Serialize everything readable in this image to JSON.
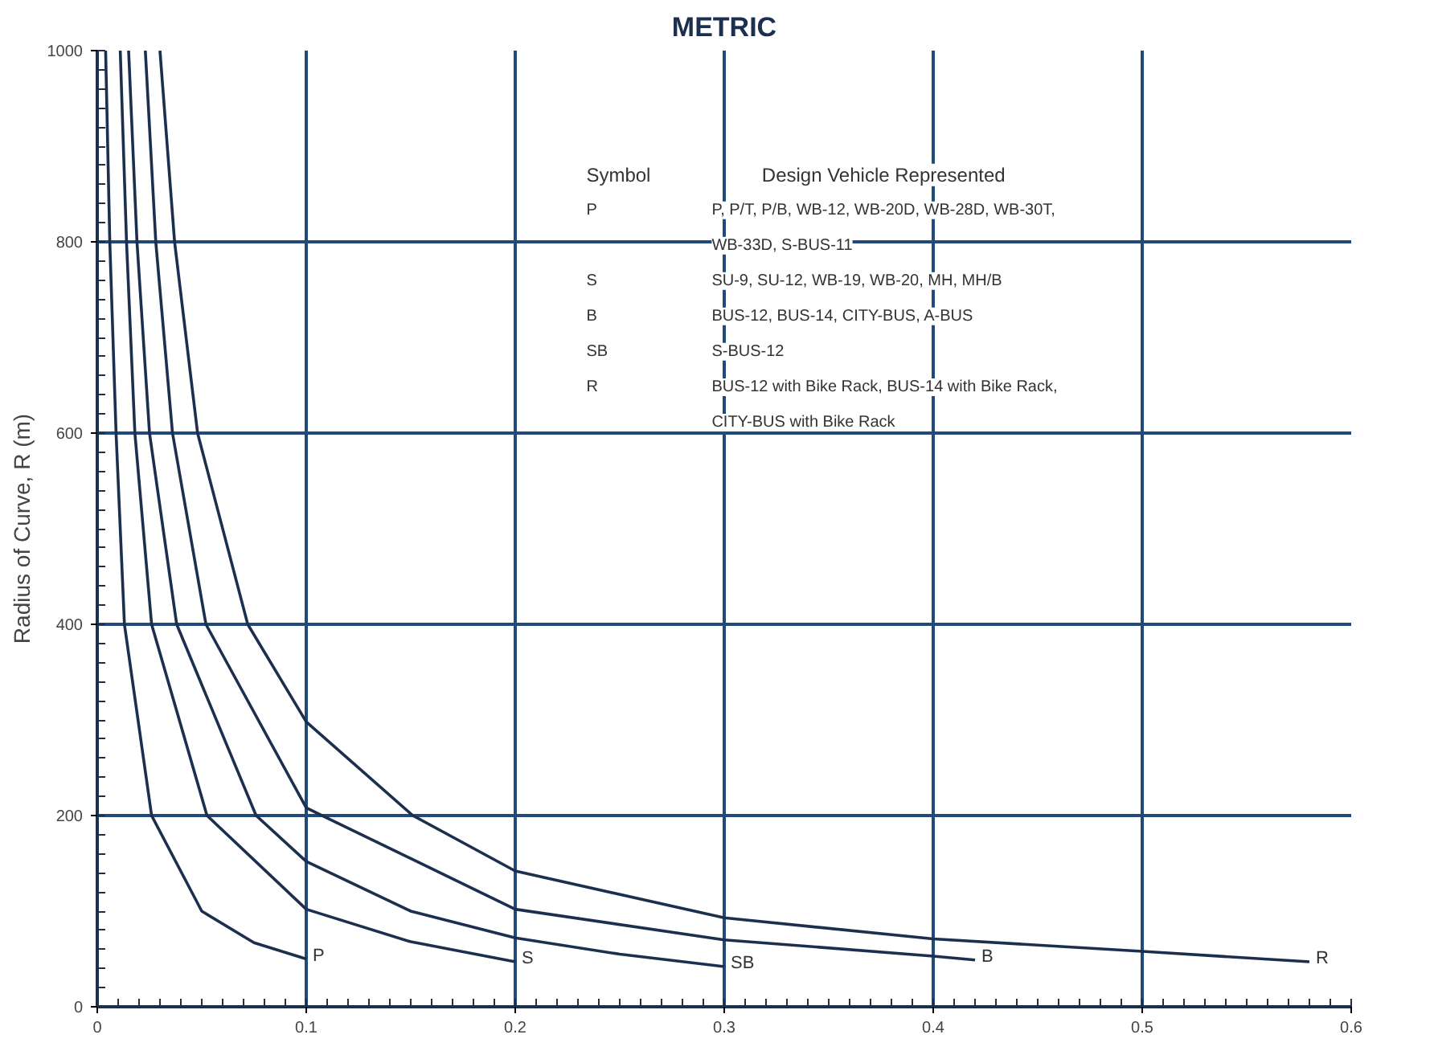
{
  "chart_data": {
    "type": "line",
    "title": "METRIC",
    "ylabel": "Radius of Curve, R (m)",
    "xlim": [
      0,
      0.6
    ],
    "ylim": [
      0,
      1000
    ],
    "xticks": [
      0,
      0.1,
      0.2,
      0.3,
      0.4,
      0.5,
      0.6
    ],
    "yticks": [
      0,
      200,
      400,
      600,
      800,
      1000
    ],
    "grid": true,
    "marker": "none",
    "line_style": "solid",
    "series": [
      {
        "name": "P",
        "color": "#1c2f4f",
        "x": [
          0.004,
          0.006,
          0.009,
          0.013,
          0.026,
          0.05,
          0.075,
          0.1
        ],
        "values": [
          1000,
          800,
          600,
          400,
          200,
          100,
          67,
          50
        ]
      },
      {
        "name": "S",
        "color": "#1c2f4f",
        "x": [
          0.011,
          0.014,
          0.018,
          0.026,
          0.0525,
          0.1,
          0.15,
          0.2
        ],
        "values": [
          1000,
          800,
          600,
          400,
          200,
          102,
          68,
          47
        ]
      },
      {
        "name": "SB",
        "color": "#1c2f4f",
        "x": [
          0.015,
          0.019,
          0.025,
          0.038,
          0.076,
          0.1,
          0.15,
          0.2,
          0.25,
          0.3
        ],
        "values": [
          1000,
          800,
          600,
          400,
          200,
          152,
          100,
          72,
          55,
          42
        ]
      },
      {
        "name": "B",
        "color": "#1c2f4f",
        "x": [
          0.023,
          0.028,
          0.036,
          0.052,
          0.1,
          0.2,
          0.3,
          0.4,
          0.42
        ],
        "values": [
          1000,
          800,
          600,
          400,
          208,
          102,
          70,
          53,
          49
        ]
      },
      {
        "name": "R",
        "color": "#1c2f4f",
        "x": [
          0.03,
          0.037,
          0.048,
          0.072,
          0.1,
          0.151,
          0.2,
          0.3,
          0.4,
          0.5,
          0.58
        ],
        "values": [
          1000,
          800,
          600,
          400,
          298,
          200,
          142,
          93,
          71,
          58,
          47
        ]
      }
    ],
    "annotations": [
      "Symbol",
      "Design Vehicle Represented",
      "P",
      "P, P/T, P/B, WB-12, WB-20D, WB-28D, WB-30T, WB-33D, S-BUS-11",
      "S",
      "SU-9, SU-12, WB-19, WB-20, MH, MH/B",
      "B",
      "BUS-12, BUS-14, CITY-BUS, A-BUS",
      "SB",
      "S-BUS-12",
      "R",
      "BUS-12 with Bike Rack, BUS-14 with Bike Rack, CITY-BUS with Bike Rack"
    ]
  }
}
